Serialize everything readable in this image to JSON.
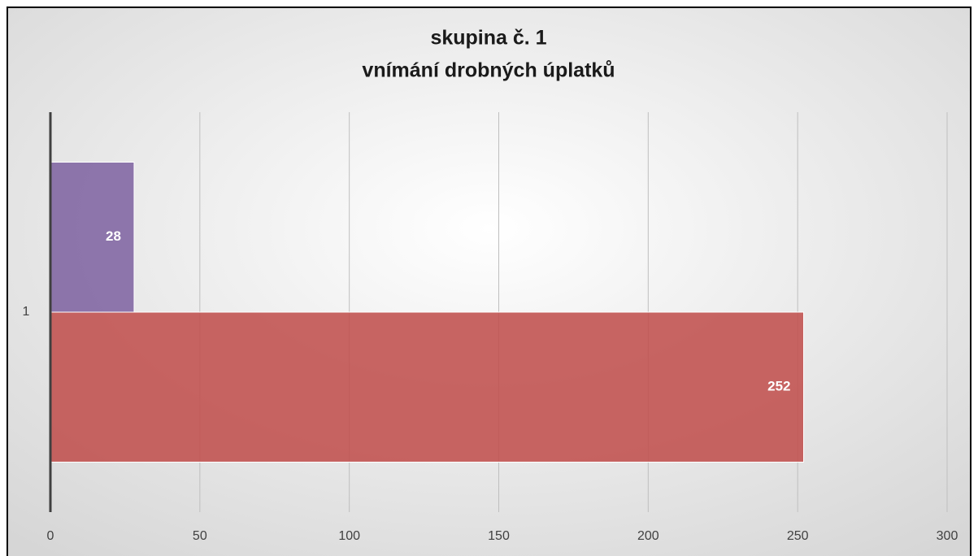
{
  "chart_data": {
    "type": "hbar",
    "title": [
      "skupina č. 1",
      "vnímání drobných úplatků"
    ],
    "categories": [
      "1"
    ],
    "series": [
      {
        "color": "#8064a2",
        "values": [
          28
        ]
      },
      {
        "color": "#c0504d",
        "values": [
          252
        ]
      }
    ],
    "xlim": [
      0,
      300
    ],
    "xticks": [
      0,
      50,
      100,
      150,
      200,
      250,
      300
    ],
    "grid": true
  }
}
